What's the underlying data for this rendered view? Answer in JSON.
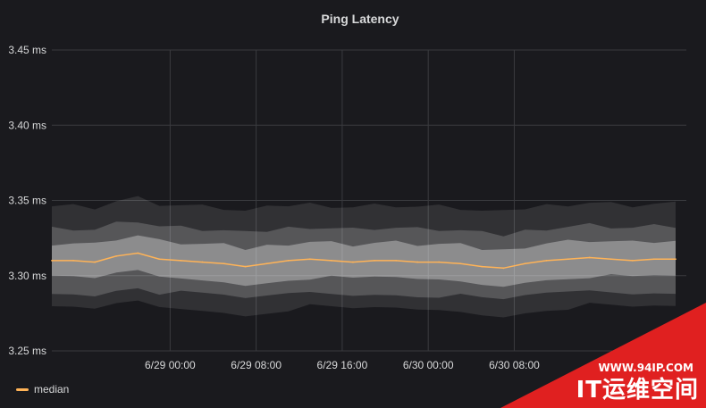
{
  "panel": {
    "title": "Ping Latency"
  },
  "legend": {
    "label": "median",
    "color": "#ffb357"
  },
  "watermark": {
    "url": "WWW.94IP.COM",
    "name": "IT运维空间",
    "color": "#e02020"
  },
  "colors": {
    "background": "#1a1a1e",
    "grid": "#3a3b3f",
    "text": "#d8d9da",
    "band": "#ffffff",
    "median": "#ffb357"
  },
  "chart_data": {
    "type": "line",
    "title": "Ping Latency",
    "xlabel": "",
    "ylabel": "",
    "y_unit": "ms",
    "ylim": [
      3.25,
      3.45
    ],
    "y_ticks": [
      "3.25 ms",
      "3.30 ms",
      "3.35 ms",
      "3.40 ms",
      "3.45 ms"
    ],
    "x_range": [
      "6/28 13:00",
      "7/1 00:00"
    ],
    "x_ticks": [
      "6/29 00:00",
      "6/29 08:00",
      "6/29 16:00",
      "6/30 00:00",
      "6/30 08:00"
    ],
    "grid": true,
    "legend_position": "bottom-left",
    "series": [
      {
        "name": "median",
        "color": "#ffb357",
        "points": [
          [
            "6/28 13:00",
            3.31
          ],
          [
            "6/28 15:00",
            3.31
          ],
          [
            "6/28 17:00",
            3.309
          ],
          [
            "6/28 19:00",
            3.313
          ],
          [
            "6/28 21:00",
            3.315
          ],
          [
            "6/28 23:00",
            3.311
          ],
          [
            "6/29 01:00",
            3.31
          ],
          [
            "6/29 03:00",
            3.309
          ],
          [
            "6/29 05:00",
            3.308
          ],
          [
            "6/29 07:00",
            3.306
          ],
          [
            "6/29 09:00",
            3.308
          ],
          [
            "6/29 11:00",
            3.31
          ],
          [
            "6/29 13:00",
            3.311
          ],
          [
            "6/29 15:00",
            3.31
          ],
          [
            "6/29 17:00",
            3.309
          ],
          [
            "6/29 19:00",
            3.31
          ],
          [
            "6/29 21:00",
            3.31
          ],
          [
            "6/29 23:00",
            3.309
          ],
          [
            "6/30 01:00",
            3.309
          ],
          [
            "6/30 03:00",
            3.308
          ],
          [
            "6/30 05:00",
            3.306
          ],
          [
            "6/30 07:00",
            3.305
          ],
          [
            "6/30 09:00",
            3.308
          ],
          [
            "6/30 11:00",
            3.31
          ],
          [
            "6/30 13:00",
            3.311
          ],
          [
            "6/30 15:00",
            3.312
          ],
          [
            "6/30 17:00",
            3.311
          ],
          [
            "6/30 19:00",
            3.31
          ],
          [
            "6/30 21:00",
            3.311
          ],
          [
            "6/30 23:00",
            3.311
          ]
        ]
      }
    ],
    "bands": [
      {
        "low": 3.3,
        "high": 3.32
      },
      {
        "low": 3.29,
        "high": 3.33
      },
      {
        "low": 3.28,
        "high": 3.345
      }
    ]
  }
}
